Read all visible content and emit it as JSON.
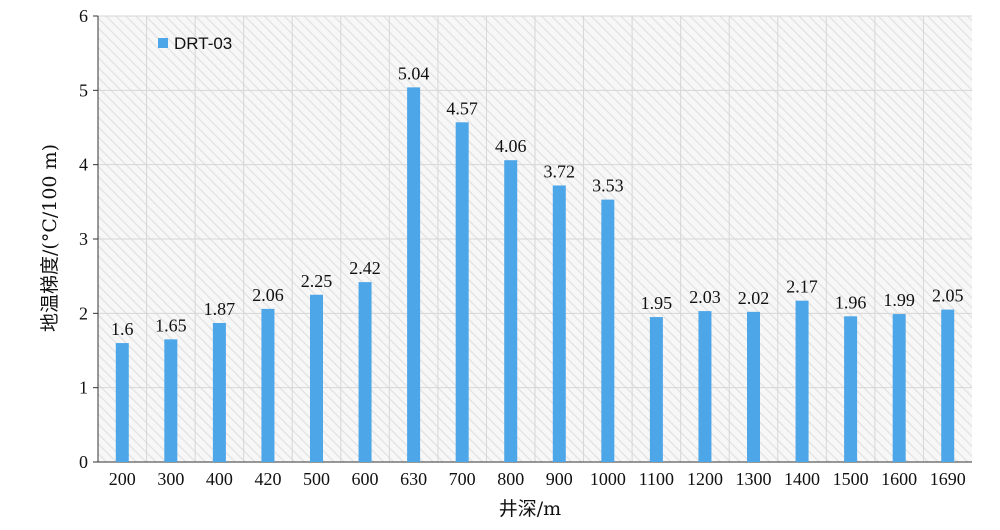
{
  "chart_data": {
    "type": "bar",
    "title": "",
    "xlabel": "井深/m",
    "ylabel": "地温梯度/(°C/100 m)",
    "ylim": [
      0,
      6
    ],
    "yticks": [
      0,
      1,
      2,
      3,
      4,
      5,
      6
    ],
    "grid": true,
    "legend_position": "top-left",
    "categories": [
      "200",
      "300",
      "400",
      "420",
      "500",
      "600",
      "630",
      "700",
      "800",
      "900",
      "1000",
      "1100",
      "1200",
      "1300",
      "1400",
      "1500",
      "1600",
      "1690"
    ],
    "series": [
      {
        "name": "DRT-03",
        "color": "#4da6e8",
        "values": [
          1.6,
          1.65,
          1.87,
          2.06,
          2.25,
          2.42,
          5.04,
          4.57,
          4.06,
          3.72,
          3.53,
          1.95,
          2.03,
          2.02,
          2.17,
          1.96,
          1.99,
          2.05
        ],
        "labels": [
          "1.6",
          "1.65",
          "1.87",
          "2.06",
          "2.25",
          "2.42",
          "5.04",
          "4.57",
          "4.06",
          "3.72",
          "3.53",
          "1.95",
          "2.03",
          "2.02",
          "2.17",
          "1.96",
          "1.99",
          "2.05"
        ]
      }
    ]
  }
}
